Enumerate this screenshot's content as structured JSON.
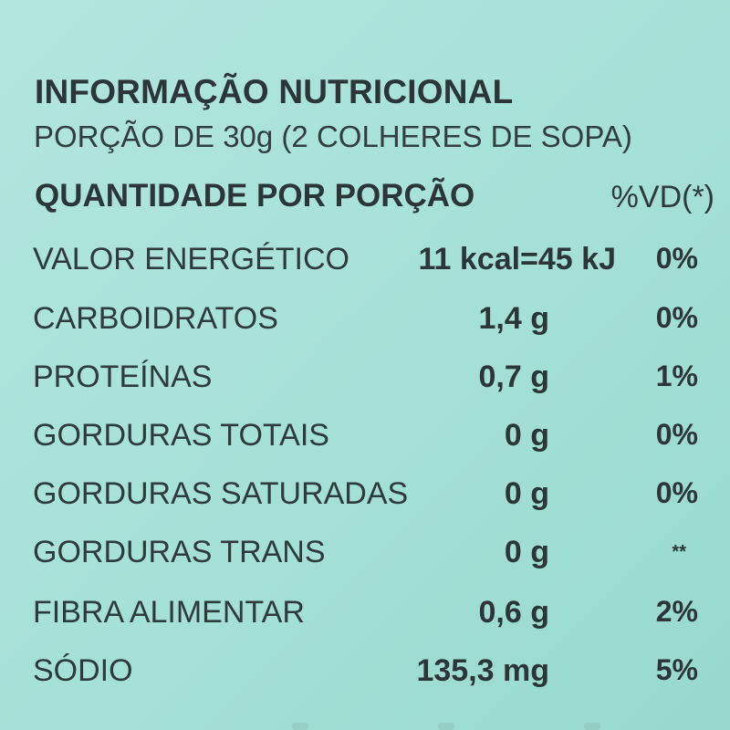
{
  "label": {
    "title": "INFORMAÇÃO NUTRICIONAL",
    "serving": "PORÇÃO DE 30g (2 COLHERES DE SOPA)",
    "header_left": "QUANTIDADE POR PORÇÃO",
    "header_right": "%VD(*)",
    "rows": [
      {
        "name": "VALOR ENERGÉTICO",
        "amount": "11 kcal=45 kJ",
        "vd": "0%"
      },
      {
        "name": "CARBOIDRATOS",
        "amount": "1,4 g",
        "vd": "0%"
      },
      {
        "name": "PROTEÍNAS",
        "amount": "0,7 g",
        "vd": "1%"
      },
      {
        "name": "GORDURAS TOTAIS",
        "amount": "0 g",
        "vd": "0%"
      },
      {
        "name": "GORDURAS SATURADAS",
        "amount": "0 g",
        "vd": "0%"
      },
      {
        "name": "GORDURAS TRANS",
        "amount": "0 g",
        "vd": "**"
      },
      {
        "name": "FIBRA ALIMENTAR",
        "amount": "0,6 g",
        "vd": "2%"
      },
      {
        "name": "SÓDIO",
        "amount": "135,3 mg",
        "vd": "5%"
      }
    ]
  },
  "colors": {
    "background": "#a8e2d8",
    "text": "#2f3a3c"
  }
}
